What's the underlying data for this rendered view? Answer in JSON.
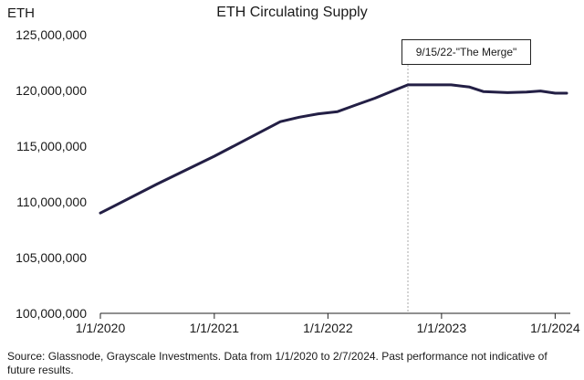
{
  "chart_data": {
    "type": "line",
    "title": "ETH Circulating Supply",
    "ylabel": "ETH",
    "xlabel": "",
    "ylim": [
      100000000,
      125000000
    ],
    "y_ticks": [
      {
        "value": 100000000,
        "label": "100,000,000"
      },
      {
        "value": 105000000,
        "label": "105,000,000"
      },
      {
        "value": 110000000,
        "label": "110,000,000"
      },
      {
        "value": 115000000,
        "label": "115,000,000"
      },
      {
        "value": 120000000,
        "label": "120,000,000"
      },
      {
        "value": 125000000,
        "label": "125,000,000"
      }
    ],
    "x_range": [
      "2020-01-01",
      "2024-02-07"
    ],
    "x_ticks": [
      {
        "value": "2020-01-01",
        "label": "1/1/2020"
      },
      {
        "value": "2021-01-01",
        "label": "1/1/2021"
      },
      {
        "value": "2022-01-01",
        "label": "1/1/2022"
      },
      {
        "value": "2023-01-01",
        "label": "1/1/2023"
      },
      {
        "value": "2024-01-01",
        "label": "1/1/2024"
      }
    ],
    "series": [
      {
        "color": "#231f45",
        "points": [
          [
            "2020-01-01",
            109000000
          ],
          [
            "2020-07-01",
            111600000
          ],
          [
            "2021-01-01",
            114100000
          ],
          [
            "2021-06-01",
            116300000
          ],
          [
            "2021-08-01",
            117200000
          ],
          [
            "2021-10-01",
            117600000
          ],
          [
            "2021-12-01",
            117900000
          ],
          [
            "2022-02-01",
            118100000
          ],
          [
            "2022-04-01",
            118700000
          ],
          [
            "2022-06-01",
            119300000
          ],
          [
            "2022-08-01",
            120000000
          ],
          [
            "2022-09-15",
            120500000
          ],
          [
            "2022-12-01",
            120500000
          ],
          [
            "2023-02-01",
            120500000
          ],
          [
            "2023-04-01",
            120300000
          ],
          [
            "2023-05-15",
            119900000
          ],
          [
            "2023-08-01",
            119800000
          ],
          [
            "2023-10-01",
            119850000
          ],
          [
            "2023-11-15",
            119950000
          ],
          [
            "2024-01-01",
            119750000
          ],
          [
            "2024-02-07",
            119750000
          ]
        ]
      }
    ],
    "annotations": [
      {
        "text": "9/15/22-\"The Merge\"",
        "x": "2022-09-15",
        "style": "dashed-vertical-line"
      }
    ],
    "grid": false
  },
  "source_note": "Source: Glassnode, Grayscale Investments. Data from 1/1/2020 to 2/7/2024. Past performance not indicative of future results."
}
